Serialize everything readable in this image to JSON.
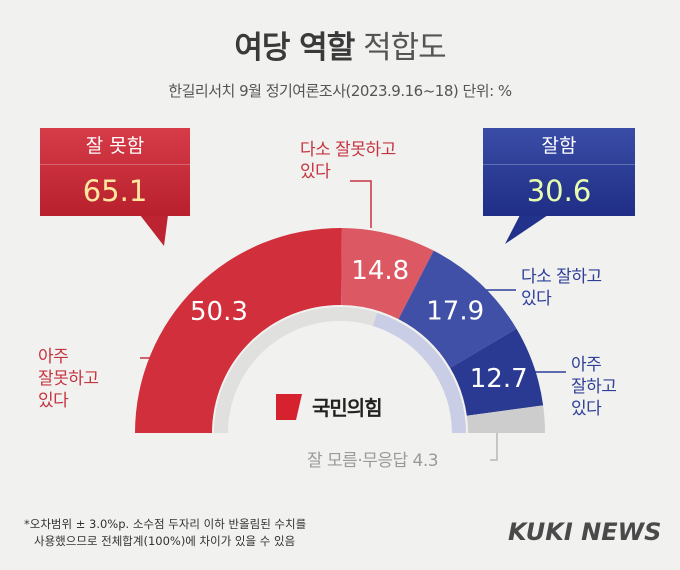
{
  "title_bold": "여당 역할",
  "title_light": "적합도",
  "subtitle": "한길리서치 9월 정기여론조사(2023.9.16~18) 단위: %",
  "summary": {
    "bad_label": "잘 못함",
    "bad_value": "65.1",
    "good_label": "잘함",
    "good_value": "30.6"
  },
  "labels": {
    "very_bad_1": "아주",
    "very_bad_2": "잘못하고",
    "very_bad_3": "있다",
    "some_bad_1": "다소 잘못하고",
    "some_bad_2": "있다",
    "some_good_1": "다소 잘하고",
    "some_good_2": "있다",
    "very_good_1": "아주",
    "very_good_2": "잘하고",
    "very_good_3": "있다",
    "dont_know": "잘 모름·무응답 4.3"
  },
  "party_name": "국민의힘",
  "footnote_1": "*오차범위 ± 3.0%p. 소수점 두자리 이하 반올림된 수치를",
  "footnote_2": "사용했으므로 전체합계(100%)에 차이가 있을 수 있음",
  "brand": "KUKI NEWS",
  "colors": {
    "very_bad": "#d22f3c",
    "some_bad": "#dc5963",
    "some_good": "#3f50a6",
    "very_good": "#2a3a93",
    "dont_know": "#cdcdcd"
  },
  "chart_data": {
    "type": "pie",
    "subtype": "half-donut",
    "title": "여당 역할 적합도",
    "unit": "%",
    "categories": [
      "아주 잘못하고 있다",
      "다소 잘못하고 있다",
      "다소 잘하고 있다",
      "아주 잘하고 있다",
      "잘 모름·무응답"
    ],
    "values": [
      50.3,
      14.8,
      17.9,
      12.7,
      4.3
    ],
    "data_labels": [
      "50.3",
      "14.8",
      "17.9",
      "12.7",
      ""
    ]
  }
}
